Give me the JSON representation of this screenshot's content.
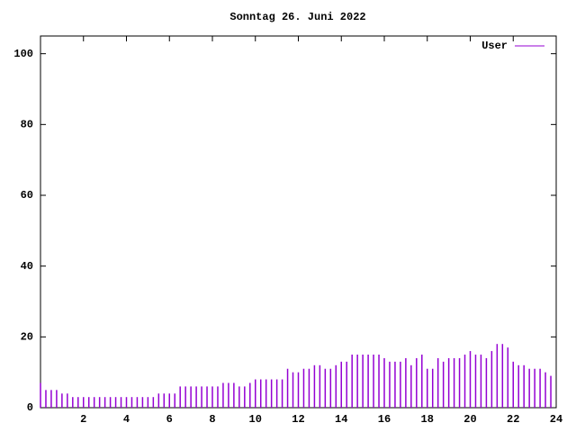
{
  "chart_data": {
    "type": "impulse",
    "title": "Sonntag 26. Juni 2022",
    "x": [
      0,
      0.25,
      0.5,
      0.75,
      1,
      1.25,
      1.5,
      1.75,
      2,
      2.25,
      2.5,
      2.75,
      3,
      3.25,
      3.5,
      3.75,
      4,
      4.25,
      4.5,
      4.75,
      5,
      5.25,
      5.5,
      5.75,
      6,
      6.25,
      6.5,
      6.75,
      7,
      7.25,
      7.5,
      7.75,
      8,
      8.25,
      8.5,
      8.75,
      9,
      9.25,
      9.5,
      9.75,
      10,
      10.25,
      10.5,
      10.75,
      11,
      11.25,
      11.5,
      11.75,
      12,
      12.25,
      12.5,
      12.75,
      13,
      13.25,
      13.5,
      13.75,
      14,
      14.25,
      14.5,
      14.75,
      15,
      15.25,
      15.5,
      15.75,
      16,
      16.25,
      16.5,
      16.75,
      17,
      17.25,
      17.5,
      17.75,
      18,
      18.25,
      18.5,
      18.75,
      19,
      19.25,
      19.5,
      19.75,
      20,
      20.25,
      20.5,
      20.75,
      21,
      21.25,
      21.5,
      21.75,
      22,
      22.25,
      22.5,
      22.75,
      23,
      23.25,
      23.5,
      23.75
    ],
    "series": [
      {
        "name": "User",
        "color": "#9400d3",
        "values": [
          7,
          5,
          5,
          5,
          4,
          4,
          3,
          3,
          3,
          3,
          3,
          3,
          3,
          3,
          3,
          3,
          3,
          3,
          3,
          3,
          3,
          3,
          4,
          4,
          4,
          4,
          6,
          6,
          6,
          6,
          6,
          6,
          6,
          6,
          7,
          7,
          7,
          6,
          6,
          7,
          8,
          8,
          8,
          8,
          8,
          8,
          11,
          10,
          10,
          11,
          11,
          12,
          12,
          11,
          11,
          12,
          13,
          13,
          15,
          15,
          15,
          15,
          15,
          15,
          14,
          13,
          13,
          13,
          14,
          12,
          14,
          15,
          11,
          11,
          14,
          13,
          14,
          14,
          14,
          15,
          16,
          15,
          15,
          14,
          16,
          18,
          18,
          17,
          13,
          12,
          12,
          11,
          11,
          11,
          10,
          9
        ]
      }
    ],
    "xlim": [
      0,
      24
    ],
    "xticks": [
      2,
      4,
      6,
      8,
      10,
      12,
      14,
      16,
      18,
      20,
      22,
      24
    ],
    "ylim": [
      0,
      105
    ],
    "yticks": [
      0,
      20,
      40,
      60,
      80,
      100
    ],
    "legend": "top-right"
  }
}
